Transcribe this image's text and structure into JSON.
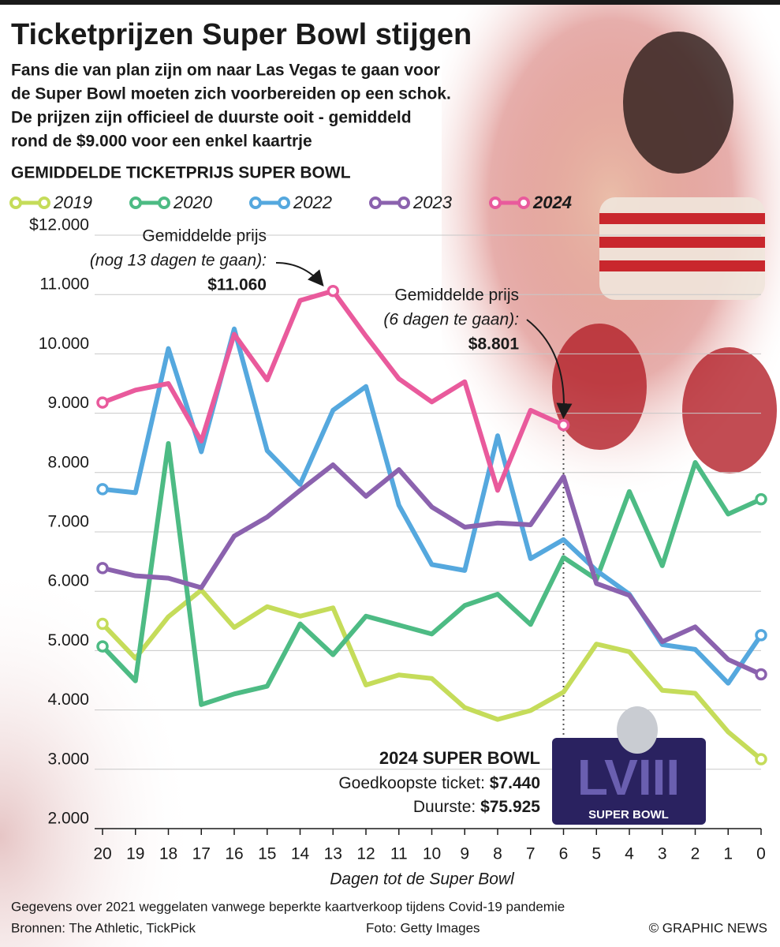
{
  "chart_data": {
    "type": "line",
    "title": "Ticketprijzen Super Bowl stijgen",
    "subtitle": [
      "Fans die van plan zijn om naar Las Vegas te gaan voor",
      "de Super Bowl moeten zich voorbereiden op een schok.",
      "De prijzen zijn officieel de duurste ooit - gemiddeld",
      "rond de $9.000 voor een enkel kaartrje"
    ],
    "chart_title": "GEMIDDELDE TICKETPRIJS SUPER BOWL",
    "x_label": "Dagen tot de Super Bowl",
    "x": [
      20,
      19,
      18,
      17,
      16,
      15,
      14,
      13,
      12,
      11,
      10,
      9,
      8,
      7,
      6,
      5,
      4,
      3,
      2,
      1,
      0
    ],
    "xlim": [
      20,
      0
    ],
    "xticks": [
      20,
      19,
      18,
      17,
      16,
      15,
      14,
      13,
      12,
      11,
      10,
      9,
      8,
      7,
      6,
      5,
      4,
      3,
      2,
      1,
      0
    ],
    "ylim": [
      2000,
      12000
    ],
    "yticks": [
      {
        "value": 2000,
        "label": "2.000"
      },
      {
        "value": 3000,
        "label": "3.000"
      },
      {
        "value": 4000,
        "label": "4.000"
      },
      {
        "value": 5000,
        "label": "5.000"
      },
      {
        "value": 6000,
        "label": "6.000"
      },
      {
        "value": 7000,
        "label": "7.000"
      },
      {
        "value": 8000,
        "label": "8.000"
      },
      {
        "value": 9000,
        "label": "9.000"
      },
      {
        "value": 10000,
        "label": "10.000"
      },
      {
        "value": 11000,
        "label": "11.000"
      },
      {
        "value": 12000,
        "label": "$12.000"
      }
    ],
    "grid": true,
    "series": [
      {
        "name": "2019",
        "color": "#c5dc5a",
        "values": [
          5450,
          4870,
          5570,
          6020,
          5390,
          5740,
          5580,
          5720,
          4420,
          4590,
          4530,
          4040,
          3840,
          3990,
          4300,
          5110,
          4980,
          4330,
          4280,
          3630,
          3170
        ]
      },
      {
        "name": "2020",
        "color": "#4dbb84",
        "values": [
          5070,
          4490,
          8490,
          4090,
          4270,
          4400,
          5450,
          4930,
          5580,
          5430,
          5280,
          5760,
          5950,
          5440,
          6570,
          6200,
          7680,
          6430,
          8170,
          7300,
          7550
        ]
      },
      {
        "name": "2022",
        "color": "#55a8de",
        "values": [
          7720,
          7660,
          10090,
          8350,
          10420,
          8370,
          7800,
          9050,
          9450,
          7450,
          6450,
          6350,
          8620,
          6550,
          6870,
          6350,
          5950,
          5100,
          5020,
          4450,
          5260
        ]
      },
      {
        "name": "2023",
        "color": "#8b62ae",
        "values": [
          6390,
          6260,
          6220,
          6060,
          6930,
          7250,
          7700,
          8130,
          7600,
          8050,
          7420,
          7080,
          7150,
          7120,
          7930,
          6130,
          5930,
          5150,
          5400,
          4850,
          4600
        ]
      },
      {
        "name": "2024",
        "color": "#e95a9c",
        "values": [
          9180,
          9390,
          9500,
          8530,
          10330,
          9560,
          10900,
          11060,
          10300,
          9580,
          9190,
          9530,
          7700,
          9050,
          8801,
          null,
          null,
          null,
          null,
          null,
          null
        ]
      }
    ],
    "annotations": [
      {
        "lines": [
          "Gemiddelde prijs",
          "(nog 13 dagen te gaan):",
          "$11.060"
        ],
        "x": 13
      },
      {
        "lines": [
          "Gemiddelde prijs",
          "(6 dagen te gaan):",
          "$8.801"
        ],
        "x": 6
      }
    ],
    "info_box": {
      "title": "2024 SUPER BOWL",
      "rows": [
        [
          "Goedkoopste ticket:",
          "$7.440"
        ],
        [
          "Duurste:",
          "$75.925"
        ]
      ]
    },
    "logo": {
      "numeral": "LVIII",
      "text": "SUPER BOWL"
    },
    "footnote": "Gegevens over 2021 weggelaten vanwege beperkte kaartverkoop tijdens Covid-19 pandemie",
    "source": "Bronnen: The Athletic, TickPick",
    "photo_credit": "Foto: Getty Images",
    "credit": "© GRAPHIC NEWS"
  }
}
